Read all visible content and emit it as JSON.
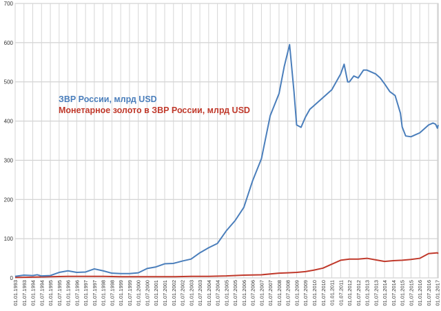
{
  "chart_data": {
    "type": "line",
    "title": "",
    "xlabel": "",
    "ylabel": "",
    "ylim": [
      0,
      700
    ],
    "y_ticks": [
      0,
      100,
      200,
      300,
      400,
      500,
      600,
      700
    ],
    "grid": true,
    "legend_position": "left-middle",
    "x_tick_labels": [
      "01.01.1993",
      "01.07.1993",
      "01.01.1994",
      "01.07.1994",
      "01.01.1995",
      "01.07.1995",
      "01.01.1996",
      "01.07.1996",
      "01.01.1997",
      "01.07.1997",
      "01.01.1998",
      "01.07.1998",
      "01.01.1999",
      "01.07.1999",
      "01.01.2000",
      "01.07.2000",
      "01.01.2001",
      "01.07.2001",
      "01.01.2002",
      "01.07.2002",
      "01.01.2003",
      "01.07.2003",
      "01.01.2004",
      "01.07.2004",
      "01.01.2005",
      "01.07.2005",
      "01.01.2006",
      "01.07.2006",
      "01.01.2007",
      "01.07.2007",
      "01.01.2008",
      "01.07.2008",
      "01.01.2009",
      "01.07.2009",
      "01.01.2010",
      "01.07.2010",
      "01.01.2011",
      "01.07.2011",
      "01.01.2012",
      "01.07.2012",
      "01.01.2013",
      "01.07.2013",
      "01.01.2014",
      "01.07.2014",
      "01.01.2015",
      "01.07.2015",
      "01.01.2016",
      "01.07.2016",
      "01.01.2017"
    ],
    "series": [
      {
        "name": "ЗВР России, млрд USD",
        "color": "#4a7ebb",
        "points": [
          [
            1993.0,
            4
          ],
          [
            1993.5,
            7
          ],
          [
            1994.0,
            6
          ],
          [
            1994.25,
            8
          ],
          [
            1994.5,
            5
          ],
          [
            1995.0,
            6
          ],
          [
            1995.5,
            14
          ],
          [
            1996.0,
            18
          ],
          [
            1996.5,
            14
          ],
          [
            1997.0,
            15
          ],
          [
            1997.5,
            23
          ],
          [
            1998.0,
            18
          ],
          [
            1998.5,
            12
          ],
          [
            1999.0,
            11
          ],
          [
            1999.5,
            11
          ],
          [
            2000.0,
            13
          ],
          [
            2000.5,
            24
          ],
          [
            2001.0,
            28
          ],
          [
            2001.5,
            36
          ],
          [
            2002.0,
            37
          ],
          [
            2002.5,
            43
          ],
          [
            2003.0,
            48
          ],
          [
            2003.5,
            64
          ],
          [
            2004.0,
            77
          ],
          [
            2004.5,
            88
          ],
          [
            2005.0,
            120
          ],
          [
            2005.5,
            146
          ],
          [
            2006.0,
            180
          ],
          [
            2006.5,
            248
          ],
          [
            2007.0,
            304
          ],
          [
            2007.5,
            414
          ],
          [
            2008.0,
            470
          ],
          [
            2008.3,
            540
          ],
          [
            2008.6,
            595
          ],
          [
            2008.85,
            475
          ],
          [
            2009.0,
            390
          ],
          [
            2009.25,
            384
          ],
          [
            2009.5,
            410
          ],
          [
            2009.75,
            430
          ],
          [
            2010.0,
            440
          ],
          [
            2010.5,
            460
          ],
          [
            2011.0,
            480
          ],
          [
            2011.5,
            520
          ],
          [
            2011.7,
            545
          ],
          [
            2011.9,
            500
          ],
          [
            2012.0,
            500
          ],
          [
            2012.25,
            515
          ],
          [
            2012.5,
            510
          ],
          [
            2012.8,
            530
          ],
          [
            2013.0,
            530
          ],
          [
            2013.5,
            520
          ],
          [
            2013.75,
            510
          ],
          [
            2014.0,
            495
          ],
          [
            2014.3,
            475
          ],
          [
            2014.6,
            465
          ],
          [
            2014.9,
            420
          ],
          [
            2015.0,
            385
          ],
          [
            2015.2,
            362
          ],
          [
            2015.5,
            360
          ],
          [
            2015.75,
            365
          ],
          [
            2016.0,
            370
          ],
          [
            2016.5,
            390
          ],
          [
            2016.75,
            395
          ],
          [
            2016.9,
            392
          ],
          [
            2017.0,
            382
          ],
          [
            2017.05,
            390
          ]
        ]
      },
      {
        "name": "Монетарное золото в ЗВР России, млрд USD",
        "color": "#c0392b",
        "points": [
          [
            1993.0,
            1
          ],
          [
            1994.0,
            2
          ],
          [
            1995.0,
            3
          ],
          [
            1996.0,
            4
          ],
          [
            1997.0,
            4
          ],
          [
            1998.0,
            4
          ],
          [
            1999.0,
            3
          ],
          [
            2000.0,
            3
          ],
          [
            2001.0,
            3
          ],
          [
            2002.0,
            3
          ],
          [
            2003.0,
            4
          ],
          [
            2004.0,
            4
          ],
          [
            2005.0,
            5
          ],
          [
            2006.0,
            7
          ],
          [
            2007.0,
            8
          ],
          [
            2008.0,
            12
          ],
          [
            2008.5,
            13
          ],
          [
            2009.0,
            14
          ],
          [
            2009.5,
            16
          ],
          [
            2010.0,
            20
          ],
          [
            2010.5,
            25
          ],
          [
            2011.0,
            35
          ],
          [
            2011.5,
            45
          ],
          [
            2012.0,
            48
          ],
          [
            2012.5,
            48
          ],
          [
            2013.0,
            50
          ],
          [
            2013.5,
            46
          ],
          [
            2014.0,
            42
          ],
          [
            2014.5,
            44
          ],
          [
            2015.0,
            45
          ],
          [
            2015.5,
            47
          ],
          [
            2016.0,
            50
          ],
          [
            2016.5,
            62
          ],
          [
            2017.0,
            64
          ],
          [
            2017.05,
            62
          ]
        ]
      }
    ]
  }
}
